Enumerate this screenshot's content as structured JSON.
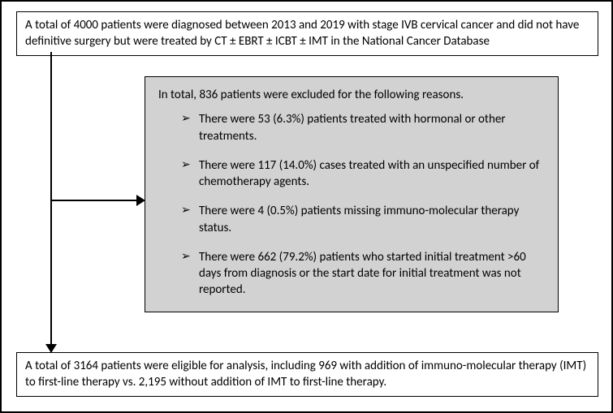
{
  "flowchart": {
    "type": "flowchart",
    "background_color": "#ffffff",
    "node_border_color": "#000000",
    "line_color": "#000000",
    "font_family": "Calibri",
    "font_size": 15,
    "nodes": {
      "top": {
        "text": "A total of 4000 patients were diagnosed between 2013 and 2019 with stage IVB cervical cancer and did not have definitive surgery but were treated by CT ± EBRT ± ICBT ± IMT in the National Cancer Database",
        "fill": "#ffffff"
      },
      "exclusion": {
        "intro": "In total, 836 patients were excluded for the following reasons.",
        "fill": "#d2d2d2",
        "items": [
          "There were 53 (6.3%) patients treated with hormonal or other treatments.",
          "There were 117 (14.0%) cases treated with an unspecified number of chemotherapy agents.",
          "There were 4 (0.5%) patients missing immuno-molecular therapy status.",
          "There were 662 (79.2%) patients who started initial treatment >60 days from diagnosis or the start date for initial treatment was not reported."
        ]
      },
      "bottom": {
        "text": "A total of 3164 patients were eligible for analysis, including 969 with addition of immuno-molecular therapy (IMT) to first-line therapy vs. 2,195 without addition of IMT to first-line therapy.",
        "fill": "#ffffff"
      }
    },
    "edges": [
      {
        "from": "top",
        "to": "exclusion",
        "style": "elbow-right"
      },
      {
        "from": "top",
        "to": "bottom",
        "style": "vertical"
      }
    ]
  }
}
